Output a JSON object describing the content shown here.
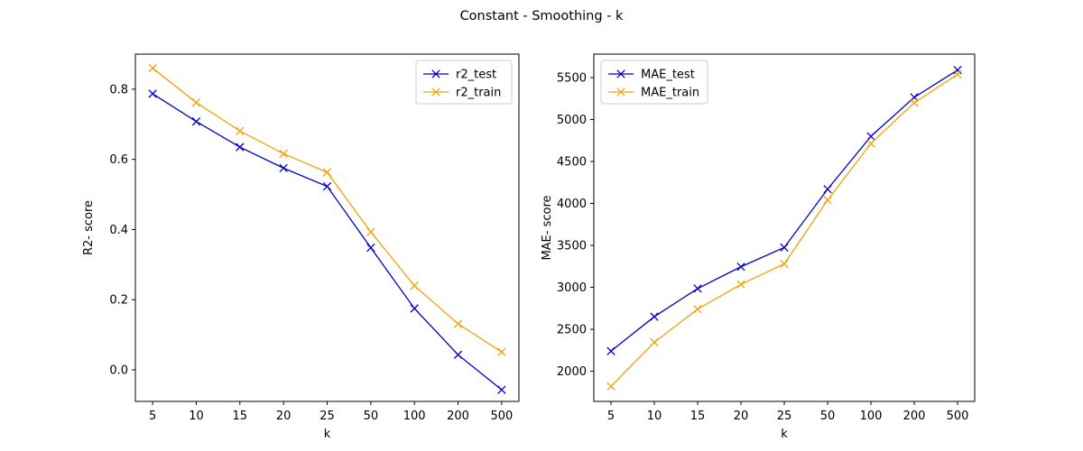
{
  "figure": {
    "suptitle": "Constant -  Smoothing - k"
  },
  "chart_data": [
    {
      "type": "line",
      "categories": [
        "5",
        "10",
        "15",
        "20",
        "25",
        "50",
        "100",
        "200",
        "500"
      ],
      "xlabel": "k",
      "ylabel": "R2- score",
      "ylim": [
        -0.09,
        0.9
      ],
      "yticks": [
        0.0,
        0.2,
        0.4,
        0.6,
        0.8
      ],
      "ytick_labels": [
        "0.0",
        "0.2",
        "0.4",
        "0.6",
        "0.8"
      ],
      "legend_position": "upper-right",
      "grid": false,
      "marker": "x",
      "series": [
        {
          "name": "r2_test",
          "color": "#0000cc",
          "values": [
            0.787,
            0.708,
            0.635,
            0.575,
            0.523,
            0.348,
            0.175,
            0.043,
            -0.057
          ]
        },
        {
          "name": "r2_train",
          "color": "#f0a30a",
          "values": [
            0.86,
            0.762,
            0.681,
            0.616,
            0.563,
            0.393,
            0.24,
            0.131,
            0.051
          ]
        }
      ]
    },
    {
      "type": "line",
      "categories": [
        "5",
        "10",
        "15",
        "20",
        "25",
        "50",
        "100",
        "200",
        "500"
      ],
      "xlabel": "k",
      "ylabel": "MAE- score",
      "ylim": [
        1640,
        5780
      ],
      "yticks": [
        2000,
        2500,
        3000,
        3500,
        4000,
        4500,
        5000,
        5500
      ],
      "ytick_labels": [
        "2000",
        "2500",
        "3000",
        "3500",
        "4000",
        "4500",
        "5000",
        "5500"
      ],
      "legend_position": "upper-left",
      "grid": false,
      "marker": "x",
      "series": [
        {
          "name": "MAE_test",
          "color": "#0000cc",
          "values": [
            2240,
            2650,
            2985,
            3245,
            3475,
            4170,
            4800,
            5265,
            5590
          ]
        },
        {
          "name": "MAE_train",
          "color": "#f0a30a",
          "values": [
            1820,
            2345,
            2740,
            3035,
            3280,
            4040,
            4715,
            5200,
            5540
          ]
        }
      ]
    }
  ]
}
